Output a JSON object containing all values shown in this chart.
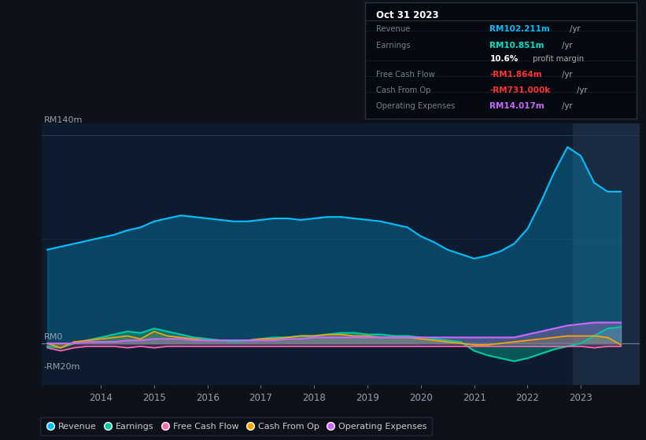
{
  "bg_color": "#0c111a",
  "plot_bg_color": "#0d1b2e",
  "title_box": {
    "date": "Oct 31 2023",
    "rows": [
      {
        "label": "Revenue",
        "value": "RM102.211m",
        "value_color": "#00bfff",
        "suffix": " /yr",
        "suffix_color": "#aaaaaa"
      },
      {
        "label": "Earnings",
        "value": "RM10.851m",
        "value_color": "#00e5cc",
        "suffix": " /yr",
        "suffix_color": "#aaaaaa"
      },
      {
        "label": "",
        "value": "10.6%",
        "value_color": "#ffffff",
        "suffix": " profit margin",
        "suffix_color": "#aaaaaa"
      },
      {
        "label": "Free Cash Flow",
        "value": "-RM1.864m",
        "value_color": "#ff3333",
        "suffix": " /yr",
        "suffix_color": "#aaaaaa"
      },
      {
        "label": "Cash From Op",
        "value": "-RM731.000k",
        "value_color": "#ff3333",
        "suffix": " /yr",
        "suffix_color": "#aaaaaa"
      },
      {
        "label": "Operating Expenses",
        "value": "RM14.017m",
        "value_color": "#cc66ff",
        "suffix": " /yr",
        "suffix_color": "#aaaaaa"
      }
    ]
  },
  "years": [
    2013.0,
    2013.25,
    2013.5,
    2013.75,
    2014.0,
    2014.25,
    2014.5,
    2014.75,
    2015.0,
    2015.25,
    2015.5,
    2015.75,
    2016.0,
    2016.25,
    2016.5,
    2016.75,
    2017.0,
    2017.25,
    2017.5,
    2017.75,
    2018.0,
    2018.25,
    2018.5,
    2018.75,
    2019.0,
    2019.25,
    2019.5,
    2019.75,
    2020.0,
    2020.25,
    2020.5,
    2020.75,
    2021.0,
    2021.25,
    2021.5,
    2021.75,
    2022.0,
    2022.25,
    2022.5,
    2022.75,
    2023.0,
    2023.25,
    2023.5,
    2023.75
  ],
  "revenue": [
    63,
    65,
    67,
    69,
    71,
    73,
    76,
    78,
    82,
    84,
    86,
    85,
    84,
    83,
    82,
    82,
    83,
    84,
    84,
    83,
    84,
    85,
    85,
    84,
    83,
    82,
    80,
    78,
    72,
    68,
    63,
    60,
    57,
    59,
    62,
    67,
    77,
    95,
    115,
    132,
    126,
    108,
    102,
    102
  ],
  "earnings": [
    -2,
    -3,
    0,
    2,
    4,
    6,
    8,
    7,
    10,
    8,
    6,
    4,
    3,
    2,
    1,
    2,
    3,
    4,
    4,
    5,
    5,
    6,
    7,
    7,
    6,
    6,
    5,
    5,
    4,
    3,
    2,
    1,
    -5,
    -8,
    -10,
    -12,
    -10,
    -7,
    -4,
    -2,
    0,
    5,
    10,
    11
  ],
  "free_cash_flow": [
    -3,
    -5,
    -3,
    -2,
    -2,
    -2,
    -3,
    -2,
    -3,
    -2,
    -2,
    -2,
    -2,
    -2,
    -2,
    -2,
    -2,
    -2,
    -2,
    -2,
    -2,
    -2,
    -2,
    -2,
    -2,
    -2,
    -2,
    -2,
    -2,
    -2,
    -2,
    -2,
    -2,
    -2,
    -2,
    -2,
    -2,
    -2,
    -2,
    -2,
    -2,
    -3,
    -2,
    -2
  ],
  "cash_from_op": [
    0,
    -3,
    1,
    2,
    3,
    4,
    5,
    3,
    8,
    5,
    4,
    3,
    2,
    2,
    2,
    2,
    3,
    3,
    4,
    5,
    5,
    6,
    6,
    5,
    5,
    4,
    4,
    4,
    3,
    2,
    1,
    0,
    -1,
    -1,
    0,
    1,
    2,
    3,
    4,
    5,
    5,
    5,
    4,
    -1
  ],
  "op_expenses": [
    0,
    0,
    0,
    1,
    1,
    1,
    2,
    2,
    3,
    3,
    3,
    2,
    2,
    2,
    2,
    2,
    2,
    2,
    3,
    3,
    4,
    4,
    4,
    4,
    4,
    4,
    4,
    4,
    4,
    4,
    4,
    4,
    4,
    4,
    4,
    4,
    6,
    8,
    10,
    12,
    13,
    14,
    14,
    14
  ],
  "revenue_color": "#00bfff",
  "earnings_color": "#00c8a0",
  "fcf_color": "#ff69b4",
  "cfo_color": "#ffa500",
  "opex_color": "#cc66ff",
  "xticks": [
    2014,
    2015,
    2016,
    2017,
    2018,
    2019,
    2020,
    2021,
    2022,
    2023
  ],
  "ylim": [
    -28,
    148
  ],
  "highlight_x_start": 2022.85,
  "highlight_x_end": 2024.1,
  "y_rm0": 0,
  "y_rm140m": 140,
  "y_rmneg20m": -20,
  "xmin": 2012.9,
  "xmax": 2024.1
}
